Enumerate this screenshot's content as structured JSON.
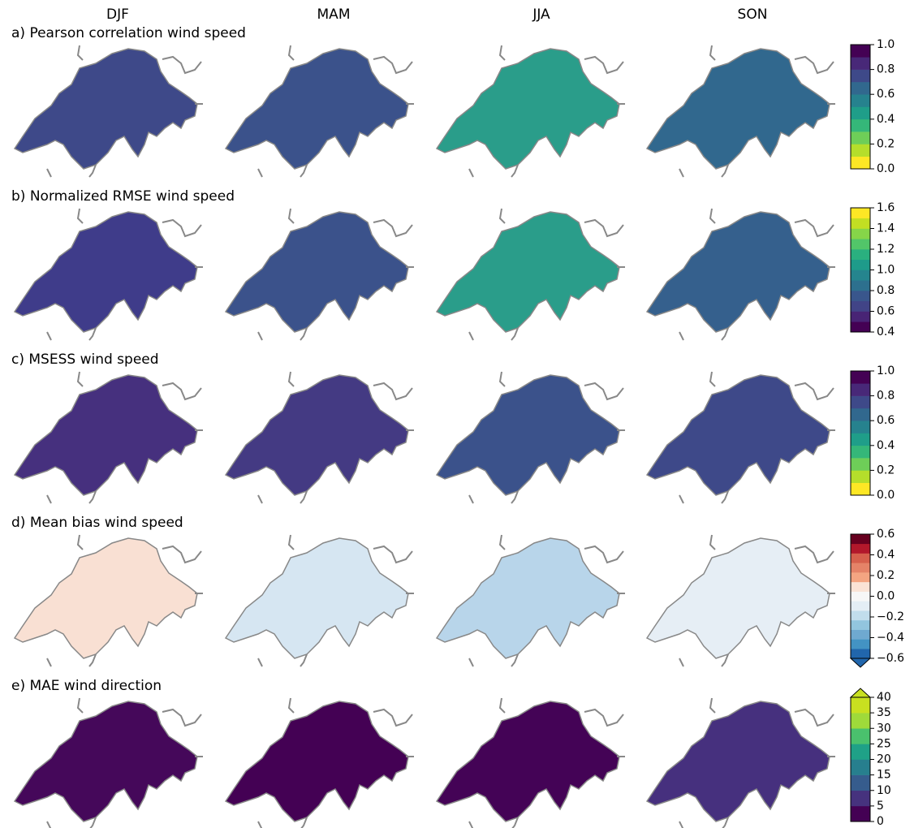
{
  "column_titles": [
    "DJF",
    "MAM",
    "JJA",
    "SON"
  ],
  "chart_data": [
    {
      "type": "map",
      "title": "a) Pearson correlation wind speed",
      "map_colors": [
        "#3e4989",
        "#3b528b",
        "#2a9d8a",
        "#31688e"
      ],
      "colorbar": {
        "ylim": [
          0,
          1
        ],
        "yticks": [
          {
            "value": 0,
            "label": "0.0"
          },
          0.2,
          0.4,
          0.6,
          0.8,
          {
            "value": 1,
            "label": "1.0"
          }
        ],
        "colors": [
          "#fde725",
          "#b5de2b",
          "#6ece58",
          "#35b779",
          "#1f9e89",
          "#26828e",
          "#31688e",
          "#3e4989",
          "#482878",
          "#440154"
        ]
      }
    },
    {
      "type": "map",
      "title": "b) Normalized RMSE wind speed",
      "map_colors": [
        "#3f3c8a",
        "#3b528b",
        "#2a9d8a",
        "#35608d"
      ],
      "colorbar": {
        "ylim": [
          0.4,
          1.6
        ],
        "yticks": [
          0.4,
          0.6,
          0.8,
          {
            "value": 1,
            "label": "1.0"
          },
          1.2,
          1.4,
          1.6
        ],
        "colors": [
          "#440154",
          "#482475",
          "#414487",
          "#39568c",
          "#2d708e",
          "#25858e",
          "#1e9b8a",
          "#2ab07f",
          "#52c569",
          "#86d549",
          "#c2df23",
          "#fde725"
        ]
      }
    },
    {
      "type": "map",
      "title": "c) MSESS wind speed",
      "map_colors": [
        "#46307e",
        "#443a83",
        "#3b528b",
        "#3e4989"
      ],
      "colorbar": {
        "ylim": [
          0,
          1
        ],
        "yticks": [
          {
            "value": 0,
            "label": "0.0"
          },
          0.2,
          0.4,
          0.6,
          0.8,
          {
            "value": 1,
            "label": "1.0"
          }
        ],
        "colors": [
          "#fde725",
          "#b5de2b",
          "#6ece58",
          "#35b779",
          "#1f9e89",
          "#26828e",
          "#31688e",
          "#3e4989",
          "#482878",
          "#440154"
        ]
      }
    },
    {
      "type": "map",
      "title": "d) Mean bias wind speed",
      "map_colors": [
        "#f9e0d3",
        "#d6e6f2",
        "#b8d5ea",
        "#e6eef5"
      ],
      "colorbar": {
        "ylim": [
          -0.6,
          0.6
        ],
        "extend": "min",
        "yticks": [
          {
            "value": -0.6,
            "label": "−0.6"
          },
          {
            "value": -0.4,
            "label": "−0.4"
          },
          {
            "value": -0.2,
            "label": "−0.2"
          },
          {
            "value": 0,
            "label": "0.0"
          },
          0.2,
          0.4,
          0.6
        ],
        "colors": [
          "#2166ac",
          "#4393c3",
          "#6fa9d0",
          "#92c5de",
          "#c1ddec",
          "#e4eef5",
          "#f7f7f7",
          "#fbe3d6",
          "#f4a582",
          "#e58368",
          "#d6604d",
          "#b2182b",
          "#67001f"
        ]
      }
    },
    {
      "type": "map",
      "title": "e) MAE wind direction",
      "map_colors": [
        "#45085a",
        "#440154",
        "#440356",
        "#46307e"
      ],
      "colorbar": {
        "ylim": [
          0,
          40
        ],
        "extend": "max",
        "yticks": [
          0,
          5,
          10,
          15,
          20,
          25,
          30,
          35,
          40
        ],
        "colors": [
          "#440154",
          "#46327e",
          "#365c8d",
          "#277f8e",
          "#1fa187",
          "#4ac16d",
          "#9fda3a",
          "#c8e020"
        ]
      }
    }
  ]
}
